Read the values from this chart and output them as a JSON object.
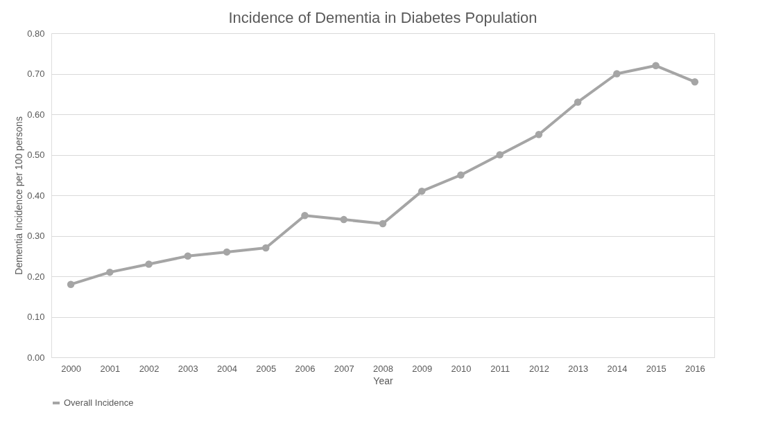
{
  "chart_data": {
    "type": "line",
    "title": "Incidence of Dementia in Diabetes Population",
    "xlabel": "Year",
    "ylabel": "Dementia Incidence per 100 persons",
    "categories": [
      "2000",
      "2001",
      "2002",
      "2003",
      "2004",
      "2005",
      "2006",
      "2007",
      "2008",
      "2009",
      "2010",
      "2011",
      "2012",
      "2013",
      "2014",
      "2015",
      "2016"
    ],
    "series": [
      {
        "name": "Overall Incidence",
        "color": "#a5a5a5",
        "values": [
          0.18,
          0.21,
          0.23,
          0.25,
          0.26,
          0.27,
          0.35,
          0.34,
          0.33,
          0.41,
          0.45,
          0.5,
          0.55,
          0.63,
          0.7,
          0.72,
          0.68
        ]
      }
    ],
    "ylim": [
      0,
      0.8
    ],
    "yticks": [
      {
        "value": 0,
        "label": "0.00"
      },
      {
        "value": 0.1,
        "label": "0.10"
      },
      {
        "value": 0.2,
        "label": "0.20"
      },
      {
        "value": 0.3,
        "label": "0.30"
      },
      {
        "value": 0.4,
        "label": "0.40"
      },
      {
        "value": 0.5,
        "label": "0.50"
      },
      {
        "value": 0.6,
        "label": "0.60"
      },
      {
        "value": 0.7,
        "label": "0.70"
      },
      {
        "value": 0.8,
        "label": "0.80"
      }
    ],
    "grid": "y",
    "legend": "bottom",
    "marker": "circle",
    "line_style": "solid"
  }
}
